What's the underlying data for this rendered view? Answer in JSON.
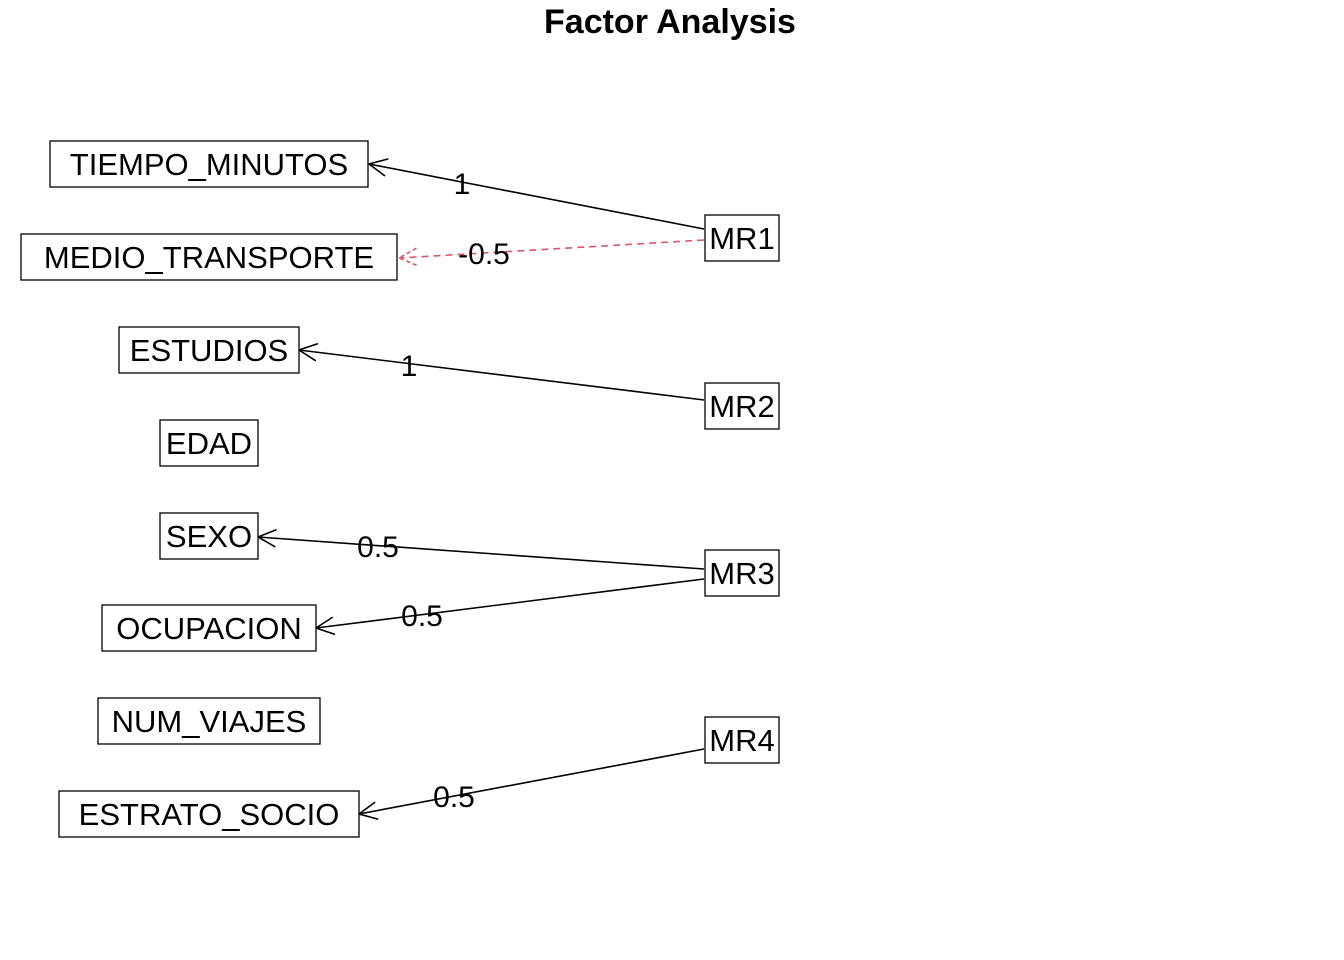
{
  "title": "Factor Analysis",
  "variables": [
    {
      "id": "TIEMPO_MINUTOS",
      "label": "TIEMPO_MINUTOS"
    },
    {
      "id": "MEDIO_TRANSPORTE",
      "label": "MEDIO_TRANSPORTE"
    },
    {
      "id": "ESTUDIOS",
      "label": "ESTUDIOS"
    },
    {
      "id": "EDAD",
      "label": "EDAD"
    },
    {
      "id": "SEXO",
      "label": "SEXO"
    },
    {
      "id": "OCUPACION",
      "label": "OCUPACION"
    },
    {
      "id": "NUM_VIAJES",
      "label": "NUM_VIAJES"
    },
    {
      "id": "ESTRATO_SOCIO",
      "label": "ESTRATO_SOCIO"
    }
  ],
  "factors": [
    {
      "id": "MR1",
      "label": "MR1"
    },
    {
      "id": "MR2",
      "label": "MR2"
    },
    {
      "id": "MR3",
      "label": "MR3"
    },
    {
      "id": "MR4",
      "label": "MR4"
    }
  ],
  "loadings": [
    {
      "from": "MR1",
      "to": "TIEMPO_MINUTOS",
      "label": "1",
      "sign": "positive"
    },
    {
      "from": "MR1",
      "to": "MEDIO_TRANSPORTE",
      "label": "-0.5",
      "sign": "negative"
    },
    {
      "from": "MR2",
      "to": "ESTUDIOS",
      "label": "1",
      "sign": "positive"
    },
    {
      "from": "MR3",
      "to": "SEXO",
      "label": "0.5",
      "sign": "positive"
    },
    {
      "from": "MR3",
      "to": "OCUPACION",
      "label": "0.5",
      "sign": "positive"
    },
    {
      "from": "MR4",
      "to": "ESTRATO_SOCIO",
      "label": "0.5",
      "sign": "positive"
    }
  ],
  "colors": {
    "positive": "#000000",
    "negative": "#DF536B"
  }
}
